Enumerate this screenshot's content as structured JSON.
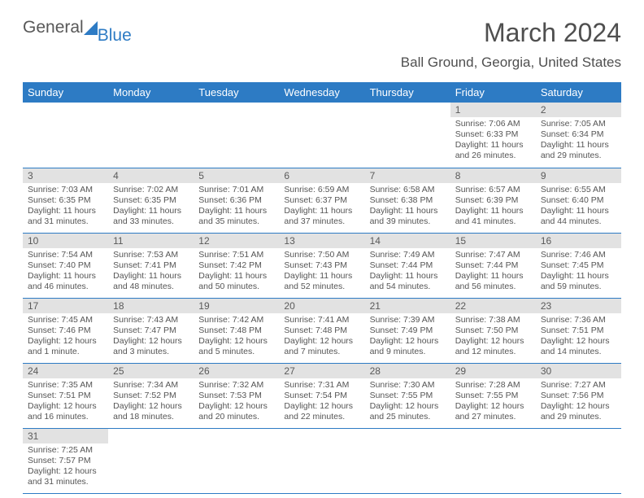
{
  "logo": {
    "word1": "General",
    "word2": "Blue"
  },
  "title": "March 2024",
  "location": "Ball Ground, Georgia, United States",
  "colors": {
    "header_bg": "#2d7bc4",
    "header_text": "#ffffff",
    "daynum_bg": "#e2e2e2",
    "text_gray": "#555555",
    "title_gray": "#4f4f4f",
    "row_border": "#2d7bc4",
    "page_bg": "#ffffff"
  },
  "typography": {
    "title_fontsize": 32,
    "location_fontsize": 17,
    "dayheader_fontsize": 13,
    "daynum_fontsize": 12,
    "body_fontsize": 10.5
  },
  "day_headers": [
    "Sunday",
    "Monday",
    "Tuesday",
    "Wednesday",
    "Thursday",
    "Friday",
    "Saturday"
  ],
  "weeks": [
    [
      {
        "blank": true
      },
      {
        "blank": true
      },
      {
        "blank": true
      },
      {
        "blank": true
      },
      {
        "blank": true
      },
      {
        "num": "1",
        "sunrise": "Sunrise: 7:06 AM",
        "sunset": "Sunset: 6:33 PM",
        "day1": "Daylight: 11 hours",
        "day2": "and 26 minutes."
      },
      {
        "num": "2",
        "sunrise": "Sunrise: 7:05 AM",
        "sunset": "Sunset: 6:34 PM",
        "day1": "Daylight: 11 hours",
        "day2": "and 29 minutes."
      }
    ],
    [
      {
        "num": "3",
        "sunrise": "Sunrise: 7:03 AM",
        "sunset": "Sunset: 6:35 PM",
        "day1": "Daylight: 11 hours",
        "day2": "and 31 minutes."
      },
      {
        "num": "4",
        "sunrise": "Sunrise: 7:02 AM",
        "sunset": "Sunset: 6:35 PM",
        "day1": "Daylight: 11 hours",
        "day2": "and 33 minutes."
      },
      {
        "num": "5",
        "sunrise": "Sunrise: 7:01 AM",
        "sunset": "Sunset: 6:36 PM",
        "day1": "Daylight: 11 hours",
        "day2": "and 35 minutes."
      },
      {
        "num": "6",
        "sunrise": "Sunrise: 6:59 AM",
        "sunset": "Sunset: 6:37 PM",
        "day1": "Daylight: 11 hours",
        "day2": "and 37 minutes."
      },
      {
        "num": "7",
        "sunrise": "Sunrise: 6:58 AM",
        "sunset": "Sunset: 6:38 PM",
        "day1": "Daylight: 11 hours",
        "day2": "and 39 minutes."
      },
      {
        "num": "8",
        "sunrise": "Sunrise: 6:57 AM",
        "sunset": "Sunset: 6:39 PM",
        "day1": "Daylight: 11 hours",
        "day2": "and 41 minutes."
      },
      {
        "num": "9",
        "sunrise": "Sunrise: 6:55 AM",
        "sunset": "Sunset: 6:40 PM",
        "day1": "Daylight: 11 hours",
        "day2": "and 44 minutes."
      }
    ],
    [
      {
        "num": "10",
        "sunrise": "Sunrise: 7:54 AM",
        "sunset": "Sunset: 7:40 PM",
        "day1": "Daylight: 11 hours",
        "day2": "and 46 minutes."
      },
      {
        "num": "11",
        "sunrise": "Sunrise: 7:53 AM",
        "sunset": "Sunset: 7:41 PM",
        "day1": "Daylight: 11 hours",
        "day2": "and 48 minutes."
      },
      {
        "num": "12",
        "sunrise": "Sunrise: 7:51 AM",
        "sunset": "Sunset: 7:42 PM",
        "day1": "Daylight: 11 hours",
        "day2": "and 50 minutes."
      },
      {
        "num": "13",
        "sunrise": "Sunrise: 7:50 AM",
        "sunset": "Sunset: 7:43 PM",
        "day1": "Daylight: 11 hours",
        "day2": "and 52 minutes."
      },
      {
        "num": "14",
        "sunrise": "Sunrise: 7:49 AM",
        "sunset": "Sunset: 7:44 PM",
        "day1": "Daylight: 11 hours",
        "day2": "and 54 minutes."
      },
      {
        "num": "15",
        "sunrise": "Sunrise: 7:47 AM",
        "sunset": "Sunset: 7:44 PM",
        "day1": "Daylight: 11 hours",
        "day2": "and 56 minutes."
      },
      {
        "num": "16",
        "sunrise": "Sunrise: 7:46 AM",
        "sunset": "Sunset: 7:45 PM",
        "day1": "Daylight: 11 hours",
        "day2": "and 59 minutes."
      }
    ],
    [
      {
        "num": "17",
        "sunrise": "Sunrise: 7:45 AM",
        "sunset": "Sunset: 7:46 PM",
        "day1": "Daylight: 12 hours",
        "day2": "and 1 minute."
      },
      {
        "num": "18",
        "sunrise": "Sunrise: 7:43 AM",
        "sunset": "Sunset: 7:47 PM",
        "day1": "Daylight: 12 hours",
        "day2": "and 3 minutes."
      },
      {
        "num": "19",
        "sunrise": "Sunrise: 7:42 AM",
        "sunset": "Sunset: 7:48 PM",
        "day1": "Daylight: 12 hours",
        "day2": "and 5 minutes."
      },
      {
        "num": "20",
        "sunrise": "Sunrise: 7:41 AM",
        "sunset": "Sunset: 7:48 PM",
        "day1": "Daylight: 12 hours",
        "day2": "and 7 minutes."
      },
      {
        "num": "21",
        "sunrise": "Sunrise: 7:39 AM",
        "sunset": "Sunset: 7:49 PM",
        "day1": "Daylight: 12 hours",
        "day2": "and 9 minutes."
      },
      {
        "num": "22",
        "sunrise": "Sunrise: 7:38 AM",
        "sunset": "Sunset: 7:50 PM",
        "day1": "Daylight: 12 hours",
        "day2": "and 12 minutes."
      },
      {
        "num": "23",
        "sunrise": "Sunrise: 7:36 AM",
        "sunset": "Sunset: 7:51 PM",
        "day1": "Daylight: 12 hours",
        "day2": "and 14 minutes."
      }
    ],
    [
      {
        "num": "24",
        "sunrise": "Sunrise: 7:35 AM",
        "sunset": "Sunset: 7:51 PM",
        "day1": "Daylight: 12 hours",
        "day2": "and 16 minutes."
      },
      {
        "num": "25",
        "sunrise": "Sunrise: 7:34 AM",
        "sunset": "Sunset: 7:52 PM",
        "day1": "Daylight: 12 hours",
        "day2": "and 18 minutes."
      },
      {
        "num": "26",
        "sunrise": "Sunrise: 7:32 AM",
        "sunset": "Sunset: 7:53 PM",
        "day1": "Daylight: 12 hours",
        "day2": "and 20 minutes."
      },
      {
        "num": "27",
        "sunrise": "Sunrise: 7:31 AM",
        "sunset": "Sunset: 7:54 PM",
        "day1": "Daylight: 12 hours",
        "day2": "and 22 minutes."
      },
      {
        "num": "28",
        "sunrise": "Sunrise: 7:30 AM",
        "sunset": "Sunset: 7:55 PM",
        "day1": "Daylight: 12 hours",
        "day2": "and 25 minutes."
      },
      {
        "num": "29",
        "sunrise": "Sunrise: 7:28 AM",
        "sunset": "Sunset: 7:55 PM",
        "day1": "Daylight: 12 hours",
        "day2": "and 27 minutes."
      },
      {
        "num": "30",
        "sunrise": "Sunrise: 7:27 AM",
        "sunset": "Sunset: 7:56 PM",
        "day1": "Daylight: 12 hours",
        "day2": "and 29 minutes."
      }
    ],
    [
      {
        "num": "31",
        "sunrise": "Sunrise: 7:25 AM",
        "sunset": "Sunset: 7:57 PM",
        "day1": "Daylight: 12 hours",
        "day2": "and 31 minutes."
      },
      {
        "blank": true
      },
      {
        "blank": true
      },
      {
        "blank": true
      },
      {
        "blank": true
      },
      {
        "blank": true
      },
      {
        "blank": true
      }
    ]
  ]
}
